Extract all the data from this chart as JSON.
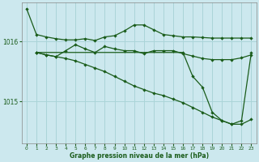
{
  "bg_color": "#cce8ee",
  "grid_color": "#aad4d8",
  "line_color": "#1a5c1a",
  "title": "Graphe pression niveau de la mer (hPa)",
  "xlim": [
    -0.5,
    23.5
  ],
  "ylim": [
    1014.3,
    1016.65
  ],
  "yticks": [
    1015.0,
    1016.0
  ],
  "xticks": [
    0,
    1,
    2,
    3,
    4,
    5,
    6,
    7,
    8,
    9,
    10,
    11,
    12,
    13,
    14,
    15,
    16,
    17,
    18,
    19,
    20,
    21,
    22,
    23
  ],
  "line1_x": [
    0,
    1,
    2,
    3,
    4,
    5,
    6,
    7,
    8,
    9,
    10,
    11,
    12,
    13,
    14,
    15,
    16,
    17,
    18,
    19,
    20,
    21,
    22,
    23
  ],
  "line1_y": [
    1016.55,
    1016.12,
    1016.08,
    1016.05,
    1016.03,
    1016.03,
    1016.05,
    1016.02,
    1016.08,
    1016.1,
    1016.18,
    1016.28,
    1016.28,
    1016.2,
    1016.12,
    1016.1,
    1016.08,
    1016.08,
    1016.07,
    1016.06,
    1016.06,
    1016.06,
    1016.06,
    1016.06
  ],
  "line2_x": [
    1,
    2,
    3,
    4,
    5,
    6,
    7,
    8,
    9,
    10,
    11,
    12,
    13,
    14,
    15,
    16,
    17,
    18,
    19,
    20,
    21,
    22,
    23
  ],
  "line2_y": [
    1015.82,
    1015.78,
    1015.75,
    1015.85,
    1015.95,
    1015.88,
    1015.82,
    1015.92,
    1015.88,
    1015.85,
    1015.85,
    1015.8,
    1015.85,
    1015.85,
    1015.85,
    1015.8,
    1015.76,
    1015.72,
    1015.7,
    1015.7,
    1015.7,
    1015.73,
    1015.78
  ],
  "line3_x": [
    1,
    2,
    3,
    4,
    5,
    6,
    7,
    8,
    9,
    10,
    11,
    12,
    13,
    14,
    15,
    16,
    17,
    18,
    19,
    20,
    21,
    22,
    23
  ],
  "line3_y": [
    1015.82,
    1015.78,
    1015.75,
    1015.72,
    1015.68,
    1015.62,
    1015.56,
    1015.5,
    1015.42,
    1015.34,
    1015.26,
    1015.2,
    1015.14,
    1015.1,
    1015.04,
    1014.98,
    1014.9,
    1014.82,
    1014.74,
    1014.68,
    1014.62,
    1014.62,
    1014.7
  ],
  "line4_x": [
    1,
    16,
    17,
    18,
    19,
    20,
    21,
    22,
    23
  ],
  "line4_y": [
    1015.82,
    1015.82,
    1015.42,
    1015.24,
    1014.82,
    1014.68,
    1014.62,
    1014.68,
    1015.82
  ]
}
